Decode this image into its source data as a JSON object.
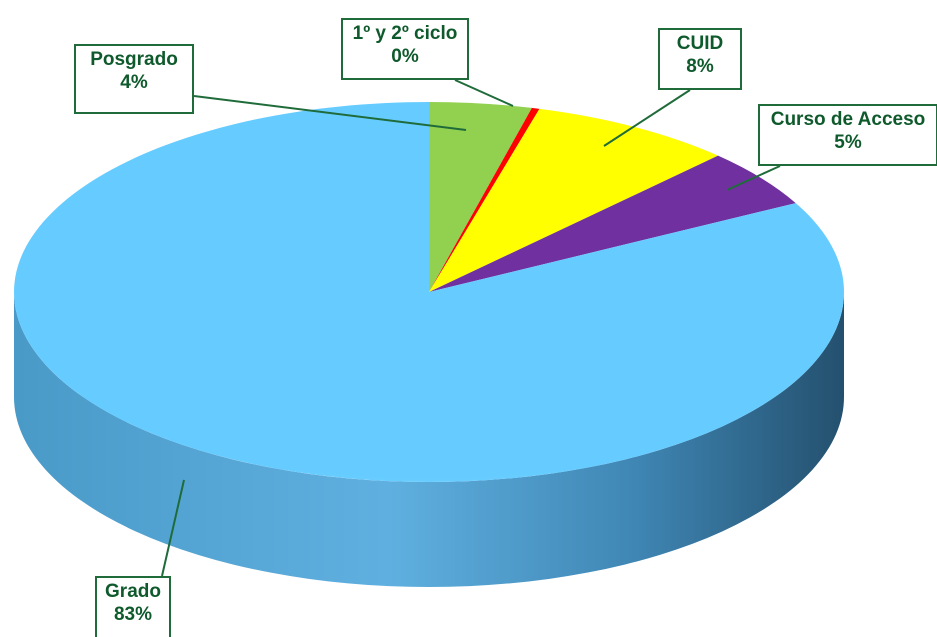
{
  "chart_data": {
    "type": "pie",
    "style": "3d",
    "title": "",
    "slices": [
      {
        "label": "Posgrado",
        "value": 4,
        "display": "4%",
        "color": "#92d050"
      },
      {
        "label": "1º y 2º ciclo",
        "value": 0.3,
        "display": "0%",
        "color": "#ff0000"
      },
      {
        "label": "CUID",
        "value": 8,
        "display": "8%",
        "color": "#ffff00"
      },
      {
        "label": "Curso de Acceso",
        "value": 5,
        "display": "5%",
        "color": "#7030a0"
      },
      {
        "label": "Grado",
        "value": 83,
        "display": "83%",
        "color": "#66ccff"
      }
    ]
  },
  "colors": {
    "callout_border": "#1f6b3a",
    "callout_text": "#0f5a2c",
    "pie_side_dark": "#2e5f80",
    "pie_side_light": "#5fb0e0"
  }
}
